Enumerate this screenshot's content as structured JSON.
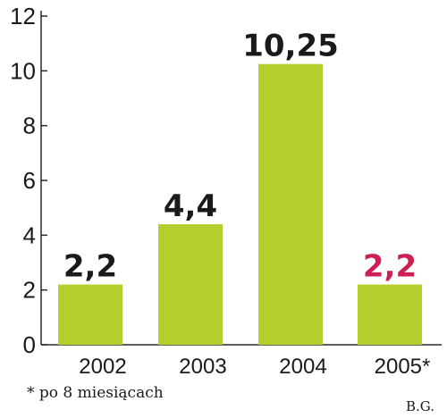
{
  "chart_data": {
    "type": "bar",
    "title": "",
    "xlabel": "",
    "ylabel": "",
    "categories": [
      "2002",
      "2003",
      "2004",
      "2005*"
    ],
    "values": [
      2.2,
      4.4,
      10.25,
      2.2
    ],
    "data_labels": [
      "2,2",
      "4,4",
      "10,25",
      "2,2"
    ],
    "label_colors": [
      "#1a1a1a",
      "#1a1a1a",
      "#1a1a1a",
      "#cc2052"
    ],
    "ylim": [
      0,
      12
    ],
    "yticks": [
      0,
      2,
      4,
      6,
      8,
      10,
      12
    ],
    "ytick_labels": [
      "0",
      "2",
      "4",
      "6",
      "8",
      "10",
      "12"
    ],
    "grid": false,
    "bar_color": "#b5cf2c",
    "axis_color": "#2a2a2a"
  },
  "footnote": "* po 8 miesiącach",
  "credit": "B.G."
}
